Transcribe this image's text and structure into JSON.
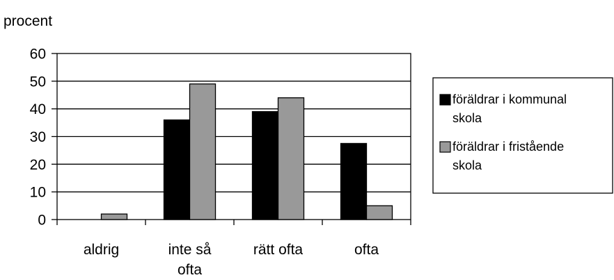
{
  "chart_data": {
    "type": "bar",
    "ylabel": "procent",
    "ylim": [
      0,
      60
    ],
    "yticks": [
      "0",
      "10",
      "20",
      "30",
      "40",
      "50",
      "60"
    ],
    "categories": [
      [
        "aldrig"
      ],
      [
        "inte så",
        "ofta"
      ],
      [
        "rätt ofta"
      ],
      [
        "ofta"
      ]
    ],
    "series": [
      {
        "name": "föräldrar i kommunal skola",
        "legend_lines": [
          "föräldrar i kommunal",
          "skola"
        ],
        "color": "#000000",
        "values": [
          0,
          36,
          39,
          27.5
        ]
      },
      {
        "name": "föräldrar i fristående skola",
        "legend_lines": [
          "föräldrar i fristående",
          "skola"
        ],
        "color": "#999999",
        "values": [
          2,
          49,
          44,
          5
        ]
      }
    ],
    "grid": true,
    "legend_position": "right"
  }
}
